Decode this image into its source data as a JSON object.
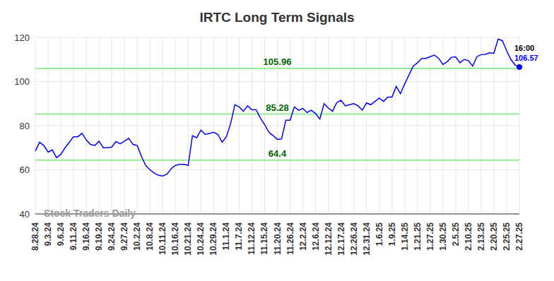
{
  "chart_data": {
    "type": "line",
    "title": "IRTC Long Term Signals",
    "watermark": "Stock Traders Daily",
    "time_label": "16:00",
    "categories": [
      "8.28.24",
      null,
      null,
      "9.3.24",
      null,
      null,
      "9.6.24",
      null,
      null,
      "9.11.24",
      null,
      null,
      "9.16.24",
      null,
      null,
      "9.19.24",
      null,
      null,
      "9.24.24",
      null,
      null,
      "9.27.24",
      null,
      null,
      "10.2.24",
      null,
      null,
      "10.8.24",
      null,
      null,
      "10.11.24",
      null,
      null,
      "10.16.24",
      null,
      null,
      "10.21.24",
      null,
      null,
      "10.24.24",
      null,
      null,
      "10.29.24",
      null,
      null,
      "11.1.24",
      null,
      null,
      "11.7.24",
      null,
      null,
      "11.12.24",
      null,
      null,
      "11.15.24",
      null,
      null,
      "11.20.24",
      null,
      null,
      "11.26.24",
      null,
      null,
      "12.2.24",
      null,
      null,
      "12.6.24",
      null,
      null,
      "12.12.24",
      null,
      null,
      "12.17.24",
      null,
      null,
      "12.26.24",
      null,
      null,
      "12.31.24",
      null,
      null,
      "1.6.25",
      null,
      null,
      "1.9.25",
      null,
      null,
      "1.14.25",
      null,
      null,
      "1.21.25",
      null,
      null,
      "1.27.25",
      null,
      null,
      "1.30.25",
      null,
      null,
      "2.5.25",
      null,
      null,
      "2.10.25",
      null,
      null,
      "2.13.25",
      null,
      null,
      "2.20.25",
      null,
      null,
      "2.25.25",
      null,
      null,
      "2.27.25"
    ],
    "values": [
      68.5,
      72.5,
      71,
      68,
      69,
      65.5,
      67,
      70,
      72.5,
      75,
      75,
      76.5,
      73.5,
      71.5,
      71,
      73,
      70,
      70,
      70.3,
      72.8,
      71.8,
      73,
      74.3,
      71.5,
      71,
      66,
      62,
      60,
      58.5,
      57.5,
      57.2,
      58,
      60.5,
      62,
      62.5,
      62.5,
      62,
      75.5,
      74.5,
      78,
      76,
      76.5,
      77,
      76,
      72.5,
      75,
      81,
      89.5,
      88.5,
      86.5,
      89,
      87.2,
      87.2,
      83.5,
      80.5,
      77,
      75.5,
      73.8,
      74,
      82.5,
      82.5,
      88.5,
      87,
      87.8,
      86,
      87,
      85.5,
      83,
      90,
      88,
      86.5,
      90.5,
      91.5,
      89,
      89.5,
      90,
      89,
      87,
      90.3,
      89.5,
      91,
      92.5,
      91,
      93,
      93,
      97.8,
      94.5,
      99,
      103,
      107,
      108.5,
      110.5,
      110.5,
      111.3,
      112,
      110.5,
      107.8,
      109,
      111,
      111.2,
      108.5,
      110,
      109.5,
      107,
      111.3,
      112.2,
      112.3,
      113,
      112.8,
      119.3,
      118.5,
      114,
      110,
      107.5,
      106.57
    ],
    "color": "#0000ff",
    "levels": [
      105.96,
      85.28,
      64.4
    ],
    "ylim": [
      40,
      120
    ],
    "yticks": [
      40,
      60,
      80,
      100,
      120
    ],
    "grid": true
  }
}
